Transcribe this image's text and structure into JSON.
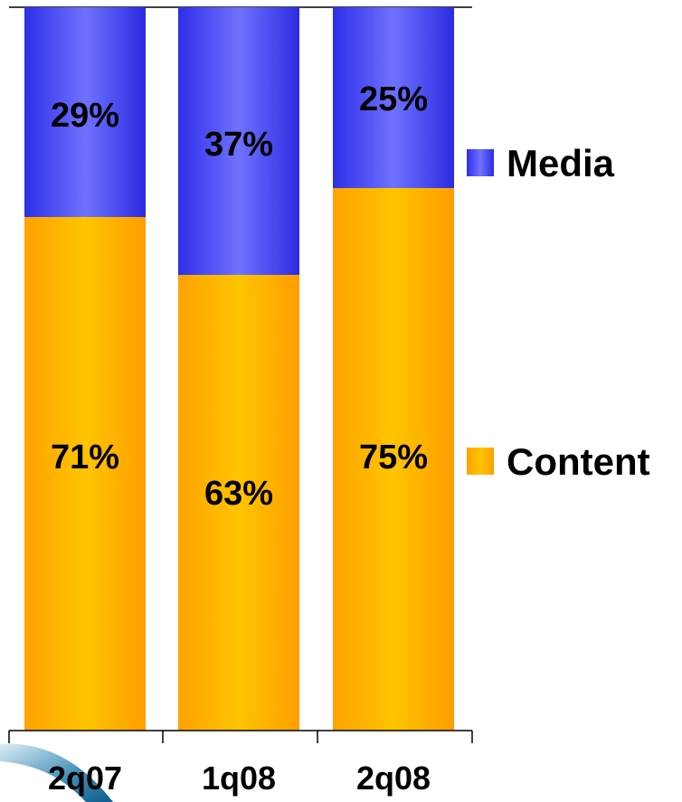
{
  "chart_data": {
    "type": "bar",
    "stacked": true,
    "percent": true,
    "categories": [
      "2q07",
      "1q08",
      "2q08"
    ],
    "series": [
      {
        "name": "Content",
        "values": [
          71,
          63,
          75
        ],
        "labels": [
          "71%",
          "63%",
          "75%"
        ],
        "color": "#FFB800"
      },
      {
        "name": "Media",
        "values": [
          29,
          37,
          25
        ],
        "labels": [
          "29%",
          "37%",
          "25%"
        ],
        "color": "#3333EE"
      }
    ],
    "ylim": [
      0,
      100
    ],
    "grid": false,
    "legend": {
      "placement": "right",
      "items": [
        "Media",
        "Content"
      ]
    },
    "title": "",
    "xlabel": "",
    "ylabel": ""
  }
}
